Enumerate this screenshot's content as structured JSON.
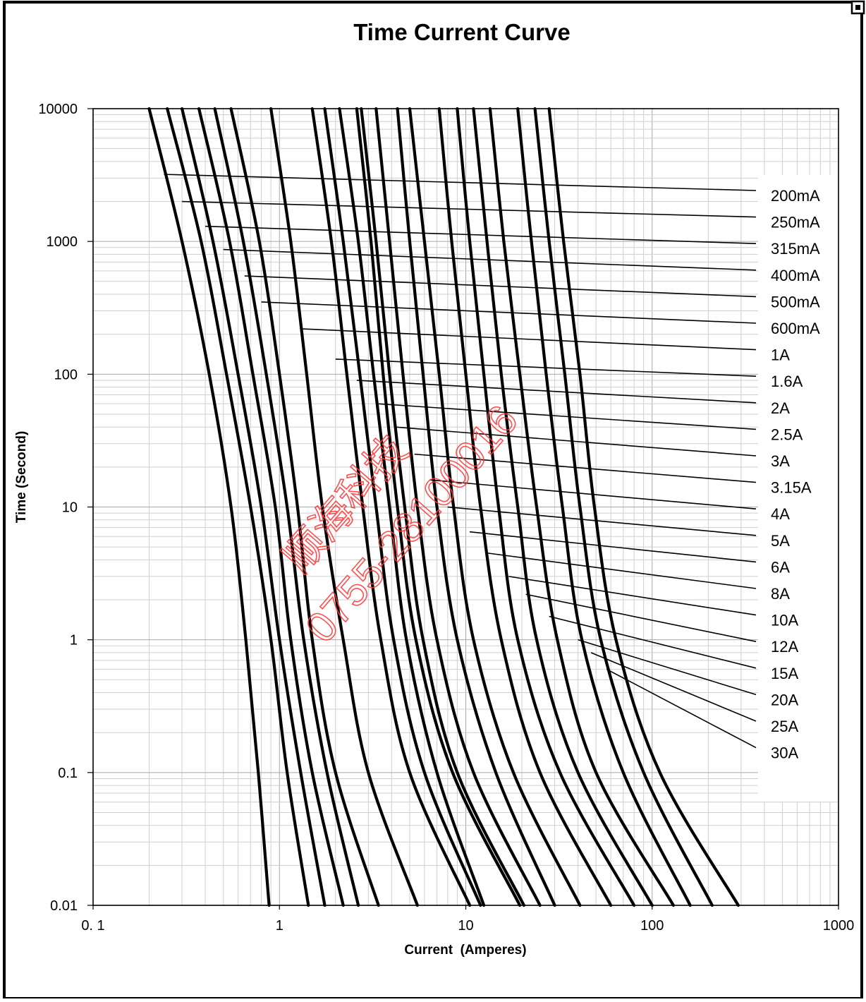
{
  "chart_data": {
    "type": "line",
    "title": "Time Current Curve",
    "xlabel": "Current  (Amperes)",
    "ylabel": "Time (Second)",
    "x_scale": "log",
    "y_scale": "log",
    "xlim": [
      0.1,
      1000
    ],
    "ylim": [
      0.01,
      10000
    ],
    "x_ticks": [
      {
        "value": 0.1,
        "label": "0. 1"
      },
      {
        "value": 1,
        "label": "1"
      },
      {
        "value": 10,
        "label": "10"
      },
      {
        "value": 100,
        "label": "100"
      },
      {
        "value": 1000,
        "label": "1000"
      }
    ],
    "y_ticks": [
      {
        "value": 10000,
        "label": "10000"
      },
      {
        "value": 1000,
        "label": "1000"
      },
      {
        "value": 100,
        "label": "100"
      },
      {
        "value": 10,
        "label": "10"
      },
      {
        "value": 1,
        "label": "1"
      },
      {
        "value": 0.1,
        "label": "0.1"
      },
      {
        "value": 0.01,
        "label": "0.01"
      }
    ],
    "grid": true,
    "legend": "right",
    "series": [
      {
        "name": "200mA",
        "points": [
          [
            0.2,
            10000
          ],
          [
            0.3,
            1000
          ],
          [
            0.42,
            100
          ],
          [
            0.55,
            10
          ],
          [
            0.66,
            1
          ],
          [
            0.77,
            0.1
          ],
          [
            0.88,
            0.01
          ]
        ],
        "leader_x": 0.24,
        "leader_y": 3200
      },
      {
        "name": "250mA",
        "points": [
          [
            0.25,
            10000
          ],
          [
            0.38,
            1000
          ],
          [
            0.52,
            100
          ],
          [
            0.7,
            10
          ],
          [
            0.9,
            1
          ],
          [
            1.1,
            0.1
          ],
          [
            1.43,
            0.01
          ]
        ],
        "leader_x": 0.3,
        "leader_y": 2000
      },
      {
        "name": "315mA",
        "points": [
          [
            0.3,
            10000
          ],
          [
            0.44,
            1000
          ],
          [
            0.6,
            100
          ],
          [
            0.8,
            10
          ],
          [
            1.0,
            1
          ],
          [
            1.3,
            0.1
          ],
          [
            1.75,
            0.01
          ]
        ],
        "leader_x": 0.4,
        "leader_y": 1300
      },
      {
        "name": "400mA",
        "points": [
          [
            0.37,
            10000
          ],
          [
            0.54,
            1000
          ],
          [
            0.72,
            100
          ],
          [
            0.95,
            10
          ],
          [
            1.15,
            1
          ],
          [
            1.5,
            0.1
          ],
          [
            2.2,
            0.01
          ]
        ],
        "leader_x": 0.5,
        "leader_y": 870
      },
      {
        "name": "500mA",
        "points": [
          [
            0.45,
            10000
          ],
          [
            0.64,
            1000
          ],
          [
            0.85,
            100
          ],
          [
            1.1,
            10
          ],
          [
            1.35,
            1
          ],
          [
            1.8,
            0.1
          ],
          [
            2.65,
            0.01
          ]
        ],
        "leader_x": 0.65,
        "leader_y": 550
      },
      {
        "name": "600mA",
        "points": [
          [
            0.55,
            10000
          ],
          [
            0.78,
            1000
          ],
          [
            1.0,
            100
          ],
          [
            1.25,
            10
          ],
          [
            1.5,
            1
          ],
          [
            2.0,
            0.1
          ],
          [
            3.4,
            0.01
          ]
        ],
        "leader_x": 0.8,
        "leader_y": 350
      },
      {
        "name": "1A",
        "points": [
          [
            0.9,
            10000
          ],
          [
            1.15,
            1000
          ],
          [
            1.4,
            100
          ],
          [
            1.7,
            10
          ],
          [
            2.2,
            1
          ],
          [
            3.0,
            0.1
          ],
          [
            5.5,
            0.01
          ]
        ],
        "leader_x": 1.3,
        "leader_y": 220
      },
      {
        "name": "1.6A",
        "points": [
          [
            1.5,
            10000
          ],
          [
            1.9,
            1000
          ],
          [
            2.3,
            100
          ],
          [
            2.8,
            10
          ],
          [
            3.5,
            1
          ],
          [
            5.0,
            0.1
          ],
          [
            10.5,
            0.01
          ]
        ],
        "leader_x": 2.0,
        "leader_y": 130
      },
      {
        "name": "2A",
        "points": [
          [
            1.75,
            10000
          ],
          [
            2.2,
            1000
          ],
          [
            2.7,
            100
          ],
          [
            3.3,
            10
          ],
          [
            4.1,
            1
          ],
          [
            6.0,
            0.1
          ],
          [
            12.0,
            0.01
          ]
        ],
        "leader_x": 2.6,
        "leader_y": 90
      },
      {
        "name": "2.5A",
        "points": [
          [
            2.1,
            10000
          ],
          [
            2.65,
            1000
          ],
          [
            3.2,
            100
          ],
          [
            3.9,
            10
          ],
          [
            4.8,
            1
          ],
          [
            7.0,
            0.1
          ],
          [
            12.5,
            0.01
          ]
        ],
        "leader_x": 3.3,
        "leader_y": 60
      },
      {
        "name": "3A",
        "points": [
          [
            2.6,
            10000
          ],
          [
            3.1,
            1000
          ],
          [
            3.6,
            100
          ],
          [
            4.3,
            10
          ],
          [
            5.4,
            1
          ],
          [
            8.5,
            0.1
          ],
          [
            19.5,
            0.01
          ]
        ],
        "leader_x": 4.2,
        "leader_y": 40
      },
      {
        "name": "3.15A",
        "points": [
          [
            2.75,
            10000
          ],
          [
            3.3,
            1000
          ],
          [
            3.9,
            100
          ],
          [
            4.7,
            10
          ],
          [
            5.9,
            1
          ],
          [
            9.0,
            0.1
          ],
          [
            20.5,
            0.01
          ]
        ],
        "leader_x": 5.3,
        "leader_y": 25
      },
      {
        "name": "4A",
        "points": [
          [
            3.3,
            10000
          ],
          [
            3.9,
            1000
          ],
          [
            4.6,
            100
          ],
          [
            5.5,
            10
          ],
          [
            7.0,
            1
          ],
          [
            11.0,
            0.1
          ],
          [
            25.0,
            0.01
          ]
        ],
        "leader_x": 6.4,
        "leader_y": 16
      },
      {
        "name": "5A",
        "points": [
          [
            4.3,
            10000
          ],
          [
            5.0,
            1000
          ],
          [
            5.9,
            100
          ],
          [
            7.0,
            10
          ],
          [
            9.0,
            1
          ],
          [
            14.5,
            0.1
          ],
          [
            30.0,
            0.01
          ]
        ],
        "leader_x": 8.0,
        "leader_y": 10
      },
      {
        "name": "6A",
        "points": [
          [
            5.0,
            10000
          ],
          [
            6.0,
            1000
          ],
          [
            7.2,
            100
          ],
          [
            8.6,
            10
          ],
          [
            11.0,
            1
          ],
          [
            18.0,
            0.1
          ],
          [
            41.0,
            0.01
          ]
        ],
        "leader_x": 10.5,
        "leader_y": 6.5
      },
      {
        "name": "8A",
        "points": [
          [
            7.2,
            10000
          ],
          [
            8.4,
            1000
          ],
          [
            10.0,
            100
          ],
          [
            12.0,
            10
          ],
          [
            15.5,
            1
          ],
          [
            25.0,
            0.1
          ],
          [
            60.0,
            0.01
          ]
        ],
        "leader_x": 13.0,
        "leader_y": 4.5
      },
      {
        "name": "10A",
        "points": [
          [
            9.0,
            10000
          ],
          [
            10.5,
            1000
          ],
          [
            12.5,
            100
          ],
          [
            15.0,
            10
          ],
          [
            19.0,
            1
          ],
          [
            32.0,
            0.1
          ],
          [
            80.0,
            0.01
          ]
        ],
        "leader_x": 17.0,
        "leader_y": 3.0
      },
      {
        "name": "12A",
        "points": [
          [
            11.0,
            10000
          ],
          [
            13.0,
            1000
          ],
          [
            15.5,
            100
          ],
          [
            19.0,
            10
          ],
          [
            24.0,
            1
          ],
          [
            40.0,
            0.1
          ],
          [
            100.0,
            0.01
          ]
        ],
        "leader_x": 21.0,
        "leader_y": 2.2
      },
      {
        "name": "15A",
        "points": [
          [
            13.5,
            10000
          ],
          [
            16.0,
            1000
          ],
          [
            19.5,
            100
          ],
          [
            24.0,
            10
          ],
          [
            31.0,
            1
          ],
          [
            50.0,
            0.1
          ],
          [
            130.0,
            0.01
          ]
        ],
        "leader_x": 28.0,
        "leader_y": 1.5
      },
      {
        "name": "20A",
        "points": [
          [
            19.0,
            10000
          ],
          [
            22.5,
            1000
          ],
          [
            27.0,
            100
          ],
          [
            33.0,
            10
          ],
          [
            42.0,
            1
          ],
          [
            70.0,
            0.1
          ],
          [
            160.0,
            0.01
          ]
        ],
        "leader_x": 40.0,
        "leader_y": 1.0
      },
      {
        "name": "25A",
        "points": [
          [
            23.5,
            10000
          ],
          [
            28.0,
            1000
          ],
          [
            34.0,
            100
          ],
          [
            41.0,
            10
          ],
          [
            53.0,
            1
          ],
          [
            90.0,
            0.1
          ],
          [
            210.0,
            0.01
          ]
        ],
        "leader_x": 47.0,
        "leader_y": 0.8
      },
      {
        "name": "30A",
        "points": [
          [
            28.0,
            10000
          ],
          [
            33.5,
            1000
          ],
          [
            41.0,
            100
          ],
          [
            49.0,
            10
          ],
          [
            64.0,
            1
          ],
          [
            110.0,
            0.1
          ],
          [
            290.0,
            0.01
          ]
        ],
        "leader_x": 57.0,
        "leader_y": 0.6
      }
    ]
  },
  "watermark": {
    "line1": "顺海科技",
    "line2": "0755-28100016",
    "color": "#ff3b3b"
  },
  "colors": {
    "curve": "#000000",
    "grid_major": "#a8a8a8",
    "grid_minor": "#cfcfcf",
    "background": "#ffffff"
  },
  "corner_icon": "maximize-icon"
}
